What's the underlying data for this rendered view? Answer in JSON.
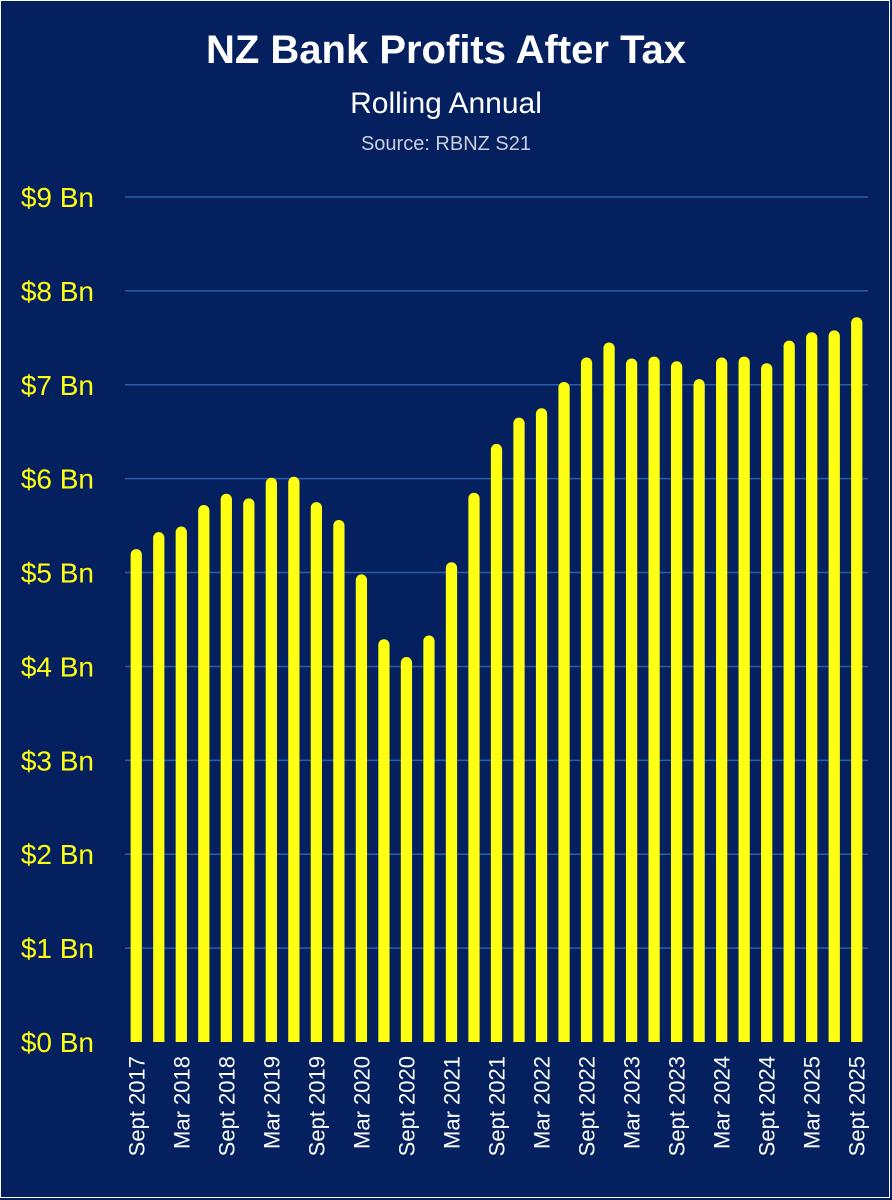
{
  "chart_data": {
    "type": "bar",
    "title": "NZ Bank Profits After Tax",
    "subtitle": "Rolling Annual",
    "source": "Source: RBNZ S21",
    "ylim": [
      0,
      9
    ],
    "yticks": [
      0,
      1,
      2,
      3,
      4,
      5,
      6,
      7,
      8,
      9
    ],
    "ytick_labels": [
      "$0 Bn",
      "$1 Bn",
      "$2 Bn",
      "$3 Bn",
      "$4 Bn",
      "$5 Bn",
      "$6 Bn",
      "$7 Bn",
      "$8 Bn",
      "$9 Bn"
    ],
    "grid": true,
    "categories": [
      "Sept 2017",
      "Dec 2017",
      "Mar 2018",
      "Jun 2018",
      "Sept 2018",
      "Dec 2018",
      "Mar 2019",
      "Jun 2019",
      "Sept 2019",
      "Dec 2019",
      "Mar 2020",
      "Jun 2020",
      "Sept 2020",
      "Dec 2020",
      "Mar 2021",
      "Jun 2021",
      "Sept 2021",
      "Dec 2021",
      "Mar 2022",
      "Jun 2022",
      "Sept 2022",
      "Dec 2022",
      "Mar 2023",
      "Jun 2023",
      "Sept 2023",
      "Dec 2023",
      "Mar 2024",
      "Jun 2024",
      "Sept 2024",
      "Dec 2024",
      "Mar 2025",
      "Jun 2025",
      "Sept 2025"
    ],
    "xtick_labels": [
      "Sept 2017",
      "",
      "Mar 2018",
      "",
      "Sept 2018",
      "",
      "Mar 2019",
      "",
      "Sept 2019",
      "",
      "Mar 2020",
      "",
      "Sept 2020",
      "",
      "Mar 2021",
      "",
      "Sept 2021",
      "",
      "Mar 2022",
      "",
      "Sept 2022",
      "",
      "Mar 2023",
      "",
      "Sept 2023",
      "",
      "Mar 2024",
      "",
      "Sept 2024",
      "",
      "Mar 2025",
      "",
      "Sept 2025"
    ],
    "values": [
      5.25,
      5.43,
      5.49,
      5.72,
      5.84,
      5.79,
      6.01,
      6.02,
      5.75,
      5.56,
      4.98,
      4.29,
      4.1,
      4.33,
      5.11,
      5.85,
      6.37,
      6.65,
      6.75,
      7.03,
      7.29,
      7.45,
      7.28,
      7.3,
      7.25,
      7.06,
      7.29,
      7.3,
      7.23,
      7.47,
      7.56,
      7.58,
      7.72
    ],
    "colors": {
      "background": "#04205e",
      "bar": "#ffff14",
      "grid": "#2c5ea8",
      "tick_text": "#ffff14",
      "title": "#ffffff",
      "source": "#c9cfdd"
    }
  }
}
